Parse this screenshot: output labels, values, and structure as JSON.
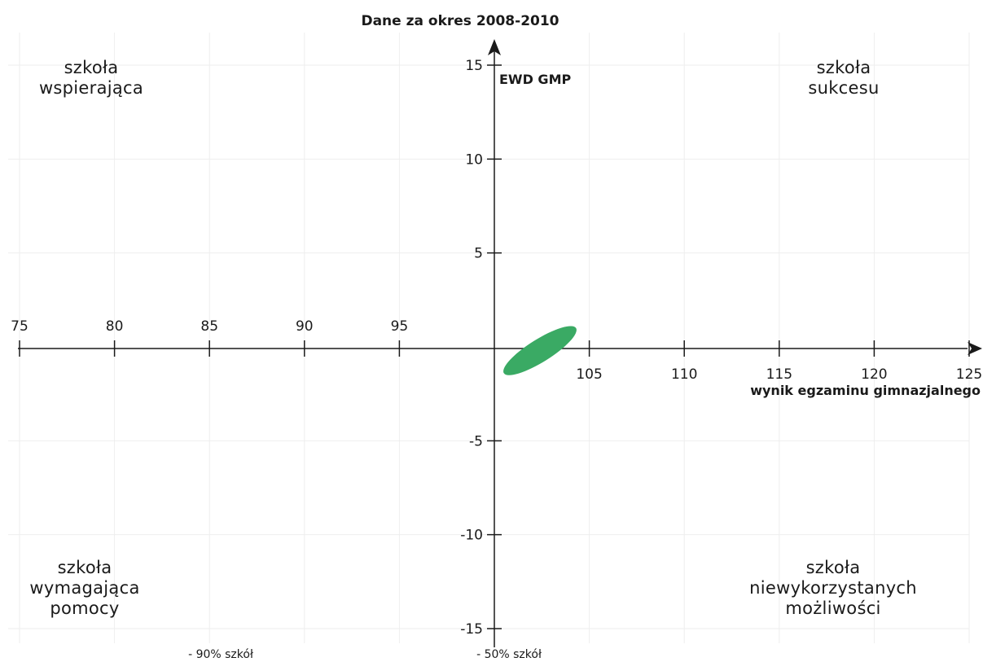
{
  "chart_data": {
    "type": "scatter",
    "title": "Dane za okres 2008-2010",
    "xlabel": "wynik egzaminu gimnazjalnego",
    "ylabel": "EWD GMP",
    "xlim": [
      75,
      125
    ],
    "ylim": [
      -15,
      15
    ],
    "origin": [
      100,
      0
    ],
    "x_ticks": [
      75,
      80,
      85,
      90,
      95,
      105,
      110,
      115,
      120,
      125
    ],
    "y_ticks": [
      15,
      10,
      5,
      -5,
      -10,
      -15
    ],
    "grid": true,
    "quadrant_labels": {
      "top_left": [
        "szkoła",
        "wspierająca"
      ],
      "top_right": [
        "szkoła",
        "sukcesu"
      ],
      "bottom_left": [
        "szkoła",
        "wymagająca",
        "pomocy"
      ],
      "bottom_right": [
        "szkoła",
        "niewykorzystanych",
        "możliwości"
      ]
    },
    "footer_notes": [
      "- 90% szkół",
      "- 50% szkół"
    ],
    "ellipse": {
      "center_x": 102.4,
      "center_y": -0.2,
      "x_range": [
        100.4,
        104.2
      ],
      "y_range": [
        -1.6,
        0.8
      ],
      "color": "#3aaa64"
    }
  }
}
